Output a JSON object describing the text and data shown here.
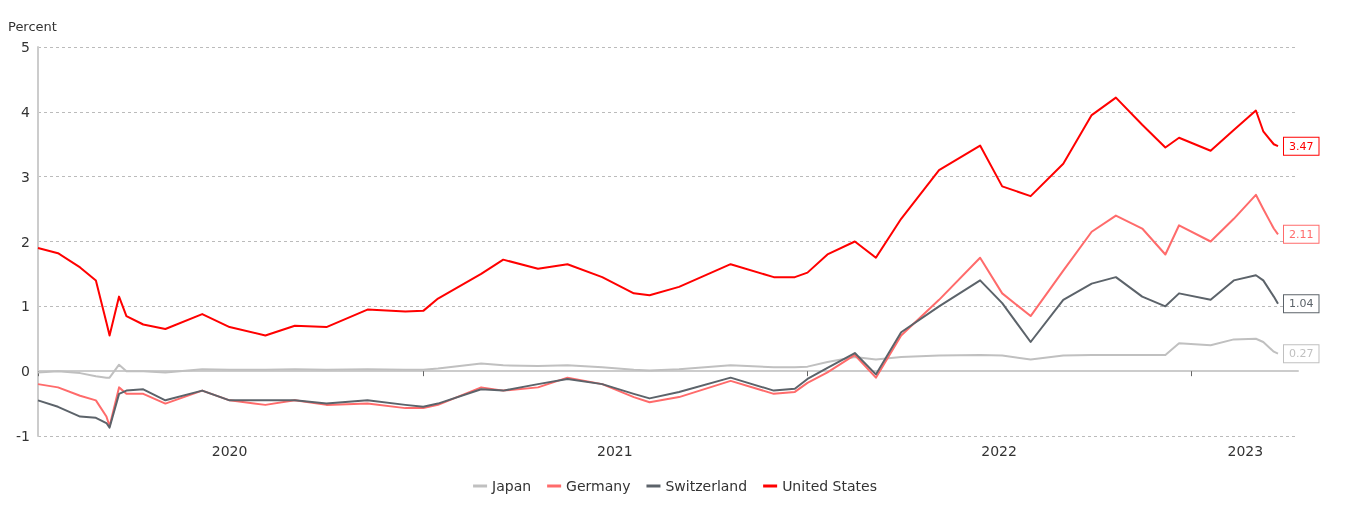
{
  "chart_data": {
    "type": "line",
    "ylabel": "Percent",
    "x": [
      "2020-01-01",
      "2020-01-20",
      "2020-02-10",
      "2020-02-25",
      "2020-03-06",
      "2020-03-09",
      "2020-03-18",
      "2020-03-25",
      "2020-04-10",
      "2020-05-01",
      "2020-06-05",
      "2020-07-01",
      "2020-08-04",
      "2020-09-01",
      "2020-10-01",
      "2020-11-09",
      "2020-12-15",
      "2021-01-01",
      "2021-01-15",
      "2021-02-25",
      "2021-03-18",
      "2021-04-20",
      "2021-05-18",
      "2021-06-20",
      "2021-07-20",
      "2021-08-04",
      "2021-09-01",
      "2021-10-20",
      "2021-11-30",
      "2021-12-20",
      "2022-01-01",
      "2022-01-20",
      "2022-02-15",
      "2022-03-07",
      "2022-03-31",
      "2022-05-06",
      "2022-06-14",
      "2022-07-05",
      "2022-08-01",
      "2022-09-01",
      "2022-09-28",
      "2022-10-21",
      "2022-11-15",
      "2022-12-07",
      "2022-12-20",
      "2023-01-19",
      "2023-02-10",
      "2023-03-03",
      "2023-03-10",
      "2023-03-20",
      "2023-03-24"
    ],
    "series": [
      {
        "name": "Japan",
        "color": "#c0c0c0",
        "values": [
          -0.02,
          0.0,
          -0.03,
          -0.08,
          -0.1,
          -0.1,
          0.1,
          0.0,
          0.0,
          -0.02,
          0.03,
          0.02,
          0.02,
          0.03,
          0.02,
          0.03,
          0.02,
          0.02,
          0.04,
          0.12,
          0.09,
          0.08,
          0.09,
          0.06,
          0.02,
          0.01,
          0.03,
          0.09,
          0.06,
          0.06,
          0.07,
          0.14,
          0.22,
          0.18,
          0.22,
          0.24,
          0.25,
          0.24,
          0.18,
          0.24,
          0.25,
          0.25,
          0.25,
          0.25,
          0.43,
          0.4,
          0.49,
          0.5,
          0.45,
          0.3,
          0.27
        ],
        "value_labels": [
          null,
          null,
          null,
          null,
          null,
          null,
          null,
          null,
          null,
          null,
          null,
          null,
          null,
          null,
          null,
          null,
          null,
          null,
          null,
          null,
          null,
          null,
          null,
          null,
          null,
          null,
          null,
          null,
          null,
          null,
          null,
          null,
          null,
          null,
          null,
          null,
          null,
          null,
          null,
          null,
          null,
          null,
          null,
          null,
          null,
          null,
          null,
          null,
          null,
          null,
          "0.27"
        ]
      },
      {
        "name": "Germany",
        "color": "#ff6b6b",
        "values": [
          -0.2,
          -0.25,
          -0.38,
          -0.45,
          -0.7,
          -0.85,
          -0.25,
          -0.35,
          -0.35,
          -0.5,
          -0.3,
          -0.45,
          -0.52,
          -0.45,
          -0.52,
          -0.5,
          -0.57,
          -0.57,
          -0.52,
          -0.25,
          -0.3,
          -0.25,
          -0.1,
          -0.2,
          -0.4,
          -0.48,
          -0.4,
          -0.15,
          -0.35,
          -0.32,
          -0.18,
          -0.02,
          0.25,
          -0.1,
          0.55,
          1.1,
          1.75,
          1.2,
          0.85,
          1.55,
          2.15,
          2.4,
          2.2,
          1.8,
          2.25,
          2.0,
          2.35,
          2.72,
          2.5,
          2.2,
          2.11
        ],
        "value_labels": [
          null,
          null,
          null,
          null,
          null,
          null,
          null,
          null,
          null,
          null,
          null,
          null,
          null,
          null,
          null,
          null,
          null,
          null,
          null,
          null,
          null,
          null,
          null,
          null,
          null,
          null,
          null,
          null,
          null,
          null,
          null,
          null,
          null,
          null,
          null,
          null,
          null,
          null,
          null,
          null,
          null,
          null,
          null,
          null,
          null,
          null,
          null,
          null,
          null,
          null,
          "2.11"
        ]
      },
      {
        "name": "Switzerland",
        "color": "#5c636a",
        "values": [
          -0.45,
          -0.55,
          -0.7,
          -0.72,
          -0.8,
          -0.87,
          -0.35,
          -0.3,
          -0.28,
          -0.45,
          -0.3,
          -0.45,
          -0.45,
          -0.45,
          -0.5,
          -0.45,
          -0.52,
          -0.55,
          -0.5,
          -0.28,
          -0.3,
          -0.2,
          -0.12,
          -0.2,
          -0.35,
          -0.42,
          -0.32,
          -0.1,
          -0.3,
          -0.27,
          -0.12,
          0.05,
          0.28,
          -0.05,
          0.6,
          1.0,
          1.4,
          1.05,
          0.45,
          1.1,
          1.35,
          1.45,
          1.15,
          1.0,
          1.2,
          1.1,
          1.4,
          1.48,
          1.4,
          1.15,
          1.04
        ],
        "value_labels": [
          null,
          null,
          null,
          null,
          null,
          null,
          null,
          null,
          null,
          null,
          null,
          null,
          null,
          null,
          null,
          null,
          null,
          null,
          null,
          null,
          null,
          null,
          null,
          null,
          null,
          null,
          null,
          null,
          null,
          null,
          null,
          null,
          null,
          null,
          null,
          null,
          null,
          null,
          null,
          null,
          null,
          null,
          null,
          null,
          null,
          null,
          null,
          null,
          null,
          null,
          "1.04"
        ]
      },
      {
        "name": "United States",
        "color": "#ff0000",
        "values": [
          1.9,
          1.82,
          1.6,
          1.4,
          0.75,
          0.55,
          1.15,
          0.85,
          0.72,
          0.65,
          0.88,
          0.68,
          0.55,
          0.7,
          0.68,
          0.95,
          0.92,
          0.93,
          1.12,
          1.5,
          1.72,
          1.58,
          1.65,
          1.45,
          1.2,
          1.17,
          1.3,
          1.65,
          1.45,
          1.45,
          1.52,
          1.8,
          2.0,
          1.75,
          2.35,
          3.1,
          3.48,
          2.85,
          2.7,
          3.2,
          3.95,
          4.22,
          3.8,
          3.45,
          3.6,
          3.4,
          3.72,
          4.02,
          3.7,
          3.5,
          3.47
        ],
        "value_labels": [
          null,
          null,
          null,
          null,
          null,
          null,
          null,
          null,
          null,
          null,
          null,
          null,
          null,
          null,
          null,
          null,
          null,
          null,
          null,
          null,
          null,
          null,
          null,
          null,
          null,
          null,
          null,
          null,
          null,
          null,
          null,
          null,
          null,
          null,
          null,
          null,
          null,
          null,
          null,
          null,
          null,
          null,
          null,
          null,
          null,
          null,
          null,
          null,
          null,
          null,
          "3.47"
        ]
      }
    ],
    "xlim": [
      "2020-01-01",
      "2023-04-12"
    ],
    "xticks": [
      {
        "value": "2020-01-01",
        "label": null
      },
      {
        "value": "2020-07-01",
        "label": "2020"
      },
      {
        "value": "2021-01-01",
        "label": null
      },
      {
        "value": "2021-07-02",
        "label": "2021"
      },
      {
        "value": "2022-01-01",
        "label": null
      },
      {
        "value": "2022-07-02",
        "label": "2022"
      },
      {
        "value": "2023-01-01",
        "label": null
      },
      {
        "value": "2023-02-21",
        "label": "2023"
      }
    ],
    "ylim": [
      -1,
      5
    ],
    "yticks": [
      -1,
      0,
      1,
      2,
      3,
      4,
      5
    ],
    "grid": "y",
    "legend": "bottom",
    "marker": "none",
    "line_style": "solid"
  }
}
